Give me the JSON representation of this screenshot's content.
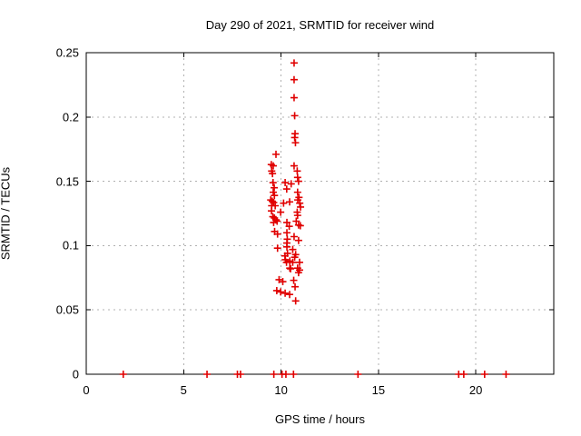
{
  "chart_data": {
    "type": "scatter",
    "title": "Day 290 of 2021, SRMTID for receiver wind",
    "xlabel": "GPS time / hours",
    "ylabel": "SRMTID / TECUs",
    "xlim": [
      0,
      24
    ],
    "ylim": [
      0,
      0.25
    ],
    "xticks": [
      0,
      5,
      10,
      15,
      20
    ],
    "xtick_labels": [
      "0",
      "5",
      "10",
      "15",
      "20"
    ],
    "yticks": [
      0,
      0.05,
      0.1,
      0.15,
      0.2,
      0.25
    ],
    "ytick_labels": [
      "0",
      "0.05",
      "0.1",
      "0.15",
      "0.2",
      "0.25"
    ],
    "grid": true,
    "legend": "none",
    "marker": "plus",
    "marker_color": "#e00000",
    "grid_color": "#b0b0b0",
    "border_color": "#000000",
    "series": [
      {
        "name": "SRMTID",
        "points": [
          [
            10.67,
            0.242
          ],
          [
            10.67,
            0.229
          ],
          [
            10.67,
            0.215
          ],
          [
            10.7,
            0.201
          ],
          [
            10.72,
            0.187
          ],
          [
            10.7,
            0.184
          ],
          [
            10.74,
            0.18
          ],
          [
            9.74,
            0.171
          ],
          [
            9.5,
            0.163
          ],
          [
            9.6,
            0.162
          ],
          [
            9.52,
            0.158
          ],
          [
            9.56,
            0.156
          ],
          [
            10.67,
            0.162
          ],
          [
            10.83,
            0.158
          ],
          [
            10.85,
            0.153
          ],
          [
            9.59,
            0.149
          ],
          [
            9.65,
            0.145
          ],
          [
            10.21,
            0.149
          ],
          [
            10.52,
            0.148
          ],
          [
            10.9,
            0.15
          ],
          [
            10.29,
            0.144
          ],
          [
            9.6,
            0.1415
          ],
          [
            9.66,
            0.139
          ],
          [
            10.85,
            0.1415
          ],
          [
            10.92,
            0.1375
          ],
          [
            9.47,
            0.1355
          ],
          [
            9.55,
            0.1345
          ],
          [
            9.62,
            0.1335
          ],
          [
            9.7,
            0.131
          ],
          [
            9.52,
            0.131
          ],
          [
            10.13,
            0.133
          ],
          [
            10.44,
            0.134
          ],
          [
            10.86,
            0.1355
          ],
          [
            10.96,
            0.133
          ],
          [
            11.0,
            0.13
          ],
          [
            9.51,
            0.127
          ],
          [
            9.98,
            0.126
          ],
          [
            10.83,
            0.126
          ],
          [
            10.85,
            0.1235
          ],
          [
            9.58,
            0.1225
          ],
          [
            9.66,
            0.1215
          ],
          [
            9.74,
            0.12
          ],
          [
            9.62,
            0.118
          ],
          [
            9.8,
            0.119
          ],
          [
            10.3,
            0.118
          ],
          [
            10.42,
            0.115
          ],
          [
            10.78,
            0.119
          ],
          [
            10.9,
            0.116
          ],
          [
            10.99,
            0.1155
          ],
          [
            9.67,
            0.111
          ],
          [
            9.82,
            0.109
          ],
          [
            10.3,
            0.11
          ],
          [
            10.32,
            0.105
          ],
          [
            10.3,
            0.102
          ],
          [
            10.67,
            0.107
          ],
          [
            10.9,
            0.104
          ],
          [
            9.82,
            0.098
          ],
          [
            10.3,
            0.099
          ],
          [
            10.33,
            0.094
          ],
          [
            10.6,
            0.097
          ],
          [
            10.75,
            0.093
          ],
          [
            10.2,
            0.092
          ],
          [
            10.45,
            0.088
          ],
          [
            10.7,
            0.091
          ],
          [
            10.95,
            0.087
          ],
          [
            10.22,
            0.089
          ],
          [
            10.28,
            0.087
          ],
          [
            10.6,
            0.087
          ],
          [
            10.49,
            0.082
          ],
          [
            10.85,
            0.0825
          ],
          [
            10.45,
            0.0825
          ],
          [
            10.9,
            0.079
          ],
          [
            10.95,
            0.081
          ],
          [
            9.9,
            0.0735
          ],
          [
            10.09,
            0.072
          ],
          [
            10.65,
            0.073
          ],
          [
            10.72,
            0.068
          ],
          [
            9.78,
            0.065
          ],
          [
            9.98,
            0.064
          ],
          [
            10.21,
            0.063
          ],
          [
            10.44,
            0.062
          ],
          [
            10.75,
            0.057
          ],
          [
            1.9,
            0
          ],
          [
            6.2,
            0
          ],
          [
            7.76,
            0
          ],
          [
            7.92,
            0
          ],
          [
            9.63,
            0
          ],
          [
            10.05,
            0
          ],
          [
            10.25,
            0
          ],
          [
            10.64,
            0
          ],
          [
            13.95,
            0
          ],
          [
            19.12,
            0
          ],
          [
            19.38,
            0
          ],
          [
            20.45,
            0
          ],
          [
            21.55,
            0
          ]
        ]
      }
    ]
  }
}
